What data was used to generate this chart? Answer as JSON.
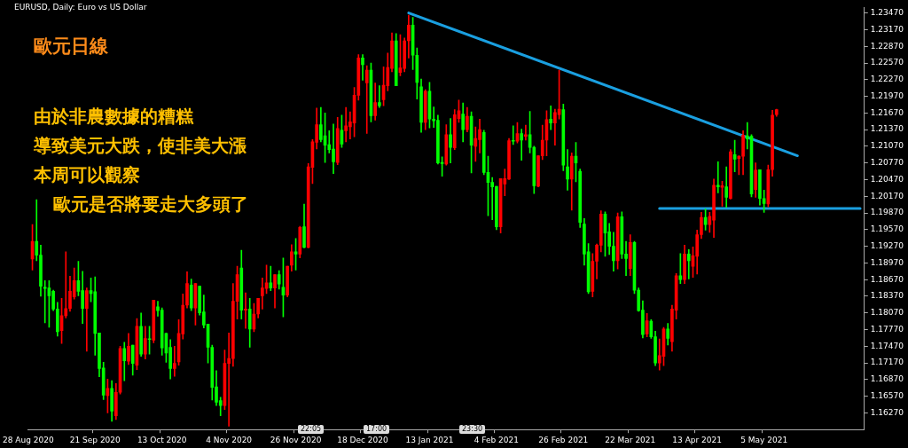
{
  "chart_data": {
    "type": "candlestick",
    "title": "EURUSD, Daily: Euro vs US Dollar",
    "annotations": [
      "歐元日線",
      "由於非農數據的糟糕",
      "導致美元大跌，使非美大漲",
      "本周可以觀察",
      "歐元是否將要走大多頭了",
      "22:05",
      "17:00",
      "23:30"
    ],
    "categories": [
      "28 Aug 2020",
      null,
      null,
      null,
      null,
      null,
      null,
      null,
      null,
      null,
      null,
      null,
      null,
      null,
      null,
      null,
      "21 Sep 2020",
      null,
      null,
      null,
      null,
      null,
      null,
      null,
      null,
      null,
      null,
      null,
      null,
      null,
      null,
      null,
      "13 Oct 2020",
      null,
      null,
      null,
      null,
      null,
      null,
      null,
      null,
      null,
      null,
      null,
      null,
      null,
      null,
      null,
      "4 Nov 2020",
      null,
      null,
      null,
      null,
      null,
      null,
      null,
      null,
      null,
      null,
      null,
      null,
      null,
      null,
      null,
      "26 Nov 2020",
      null,
      null,
      null,
      null,
      null,
      null,
      null,
      null,
      null,
      null,
      null,
      null,
      null,
      null,
      null,
      "18 Dec 2020",
      null,
      null,
      null,
      null,
      null,
      null,
      null,
      null,
      null,
      null,
      null,
      null,
      null,
      null,
      null,
      "13 Jan 2021",
      null,
      null,
      null,
      null,
      null,
      null,
      null,
      null,
      null,
      null,
      null,
      null,
      null,
      null,
      null,
      "4 Feb 2021",
      null,
      null,
      null,
      null,
      null,
      null,
      null,
      null,
      null,
      null,
      null,
      null,
      null,
      null,
      null,
      "26 Feb 2021",
      null,
      null,
      null,
      null,
      null,
      null,
      null,
      null,
      null,
      null,
      null,
      null,
      null,
      null,
      null,
      "22 Mar 2021",
      null,
      null,
      null,
      null,
      null,
      null,
      null,
      null,
      null,
      null,
      null,
      null,
      null,
      null,
      null,
      "13 Apr 2021",
      null,
      null,
      null,
      null,
      null,
      null,
      null,
      null,
      null,
      null,
      null,
      null,
      null,
      null,
      null,
      "5 May 2021",
      null,
      null,
      null,
      null,
      null,
      null,
      null,
      null,
      null,
      null,
      null,
      null,
      null,
      null,
      null,
      null,
      null,
      null,
      null,
      null,
      null,
      null,
      null,
      null
    ],
    "ohlc": [
      null,
      [
        1.1904,
        1.1966,
        1.1884,
        1.1936
      ],
      [
        1.1936,
        1.2011,
        1.1901,
        1.1911
      ],
      [
        1.1911,
        1.1929,
        1.1837,
        1.1855
      ],
      [
        1.1853,
        1.1865,
        1.1789,
        1.1851
      ],
      [
        1.1852,
        1.1865,
        1.1781,
        1.1838
      ],
      [
        1.1846,
        1.1848,
        1.1811,
        1.1814
      ],
      [
        1.1814,
        1.1826,
        1.1765,
        1.1773
      ],
      [
        1.1775,
        1.1833,
        1.1752,
        1.1802
      ],
      [
        1.1802,
        1.1917,
        1.1798,
        1.1815
      ],
      [
        1.1815,
        1.1873,
        1.181,
        1.1846
      ],
      [
        1.1836,
        1.1888,
        1.1832,
        1.1865
      ],
      [
        1.1865,
        1.19,
        1.1838,
        1.1846
      ],
      [
        1.1847,
        1.1882,
        1.1788,
        1.1815
      ],
      [
        1.1815,
        1.1852,
        1.1738,
        1.1847
      ],
      [
        1.1847,
        1.187,
        1.1827,
        1.1842
      ],
      [
        1.1845,
        1.1872,
        1.1731,
        1.177
      ],
      [
        1.1771,
        1.1771,
        1.1692,
        1.1707
      ],
      [
        1.1708,
        1.1718,
        1.1651,
        1.1659
      ],
      [
        1.1658,
        1.1688,
        1.1627,
        1.1671
      ],
      [
        1.1671,
        1.1685,
        1.1612,
        1.163
      ],
      [
        1.1622,
        1.168,
        1.1615,
        1.1664
      ],
      [
        1.1664,
        1.1747,
        1.1661,
        1.1743
      ],
      [
        1.1743,
        1.1754,
        1.1685,
        1.1721
      ],
      [
        1.172,
        1.177,
        1.1714,
        1.1747
      ],
      [
        1.1749,
        1.1749,
        1.1695,
        1.1716
      ],
      [
        1.1713,
        1.1797,
        1.1705,
        1.1783
      ],
      [
        1.1783,
        1.1807,
        1.1729,
        1.1733
      ],
      [
        1.1733,
        1.1783,
        1.1724,
        1.1761
      ],
      [
        1.176,
        1.1783,
        1.1733,
        1.1759
      ],
      [
        1.1758,
        1.183,
        1.1753,
        1.183
      ],
      [
        1.1818,
        1.1828,
        1.1801,
        1.1811
      ],
      [
        1.1812,
        1.1816,
        1.1731,
        1.1744
      ],
      [
        1.177,
        1.1771,
        1.1718,
        1.1735
      ],
      [
        1.1745,
        1.1759,
        1.1688,
        1.1707
      ],
      [
        1.1707,
        1.1747,
        1.1693,
        1.1716
      ],
      [
        1.1719,
        1.1795,
        1.1713,
        1.177
      ],
      [
        1.1769,
        1.1841,
        1.176,
        1.1821
      ],
      [
        1.1821,
        1.1881,
        1.1816,
        1.186
      ],
      [
        1.1857,
        1.1868,
        1.1811,
        1.1816
      ],
      [
        1.1816,
        1.186,
        1.1785,
        1.186
      ],
      [
        1.1855,
        1.1855,
        1.1803,
        1.1807
      ],
      [
        1.1809,
        1.1839,
        1.178,
        1.1785
      ],
      [
        1.1787,
        1.1787,
        1.1717,
        1.1745
      ],
      [
        1.1745,
        1.1749,
        1.165,
        1.1673
      ],
      [
        1.1674,
        1.1703,
        1.164,
        1.1646
      ],
      [
        1.1649,
        1.1655,
        1.1622,
        1.164
      ],
      [
        1.164,
        1.174,
        1.1633,
        1.1716
      ],
      [
        1.1716,
        1.1771,
        1.1603,
        1.1725
      ],
      [
        1.1725,
        1.186,
        1.1711,
        1.1828
      ],
      [
        1.1828,
        1.1891,
        1.1796,
        1.1876
      ],
      [
        1.1888,
        1.192,
        1.1796,
        1.1812
      ],
      [
        1.1812,
        1.1843,
        1.1779,
        1.1814
      ],
      [
        1.1814,
        1.1833,
        1.1745,
        1.1778
      ],
      [
        1.1778,
        1.1824,
        1.1773,
        1.1805
      ],
      [
        1.1805,
        1.1833,
        1.1798,
        1.1833
      ],
      [
        1.1838,
        1.187,
        1.1814,
        1.1852
      ],
      [
        1.1851,
        1.1893,
        1.1842,
        1.1861
      ],
      [
        1.1861,
        1.1891,
        1.1847,
        1.1852
      ],
      [
        1.1852,
        1.1876,
        1.1816,
        1.1876
      ],
      [
        1.1876,
        1.1883,
        1.185,
        1.1859
      ],
      [
        1.1853,
        1.1906,
        1.18,
        1.1839
      ],
      [
        1.1839,
        1.1891,
        1.1836,
        1.1891
      ],
      [
        1.1893,
        1.193,
        1.1882,
        1.1917
      ],
      [
        1.1917,
        1.1941,
        1.1884,
        1.1913
      ],
      [
        1.1913,
        1.1963,
        1.1906,
        1.1961
      ],
      [
        1.1962,
        1.2003,
        1.1924,
        1.1925
      ],
      [
        1.1925,
        1.2076,
        1.1924,
        1.207
      ],
      [
        1.2069,
        1.2119,
        1.204,
        1.2115
      ],
      [
        1.2114,
        1.2176,
        1.2102,
        1.2146
      ],
      [
        1.2146,
        1.2177,
        1.2115,
        1.2119
      ],
      [
        1.2126,
        1.2167,
        1.2078,
        1.2109
      ],
      [
        1.211,
        1.2135,
        1.2095,
        1.2101
      ],
      [
        1.2102,
        1.2147,
        1.2058,
        1.2079
      ],
      [
        1.2078,
        1.2159,
        1.2074,
        1.2139
      ],
      [
        1.2136,
        1.2163,
        1.2105,
        1.2111
      ],
      [
        1.2135,
        1.2177,
        1.2115,
        1.2144
      ],
      [
        1.2142,
        1.2169,
        1.212,
        1.2151
      ],
      [
        1.2149,
        1.2213,
        1.2124,
        1.2199
      ],
      [
        1.2199,
        1.2272,
        1.219,
        1.2266
      ],
      [
        1.2266,
        1.2272,
        1.2226,
        1.2254
      ],
      [
        1.2221,
        1.2252,
        1.213,
        1.2244
      ],
      [
        1.2244,
        1.2257,
        1.2151,
        1.2162
      ],
      [
        1.2162,
        1.2221,
        1.2154,
        1.2186
      ],
      [
        1.2186,
        1.2216,
        1.2177,
        1.218
      ],
      [
        1.2191,
        1.225,
        1.218,
        1.2217
      ],
      [
        1.2216,
        1.2275,
        1.2207,
        1.2249
      ],
      [
        1.2247,
        1.2311,
        1.2241,
        1.2297
      ],
      [
        1.2297,
        1.231,
        1.2216,
        1.2216
      ],
      [
        1.224,
        1.2308,
        1.2234,
        1.2248
      ],
      [
        1.2247,
        1.2302,
        1.2241,
        1.2297
      ],
      [
        1.2297,
        1.2343,
        1.2266,
        1.2325
      ],
      [
        1.2325,
        1.2339,
        1.2245,
        1.2271
      ],
      [
        1.2271,
        1.2284,
        1.2192,
        1.2222
      ],
      [
        1.2214,
        1.2228,
        1.2132,
        1.215
      ],
      [
        1.215,
        1.2209,
        1.2137,
        1.2206
      ],
      [
        1.2206,
        1.2222,
        1.214,
        1.2156
      ],
      [
        1.2156,
        1.2178,
        1.2141,
        1.2153
      ],
      [
        1.2154,
        1.2163,
        1.2075,
        1.2077
      ],
      [
        1.2078,
        1.2088,
        1.2053,
        1.2076
      ],
      [
        1.2075,
        1.2146,
        1.2073,
        1.2128
      ],
      [
        1.2128,
        1.2157,
        1.2077,
        1.2105
      ],
      [
        1.2104,
        1.2173,
        1.2101,
        1.2164
      ],
      [
        1.2157,
        1.219,
        1.215,
        1.2171
      ],
      [
        1.2165,
        1.2185,
        1.2115,
        1.2137
      ],
      [
        1.2137,
        1.2177,
        1.2133,
        1.2161
      ],
      [
        1.2161,
        1.2169,
        1.2059,
        1.2109
      ],
      [
        1.2107,
        1.2142,
        1.208,
        1.2121
      ],
      [
        1.2119,
        1.2156,
        1.2095,
        1.2137
      ],
      [
        1.2132,
        1.2136,
        1.2056,
        1.206
      ],
      [
        1.206,
        1.2089,
        1.1982,
        1.2042
      ],
      [
        1.2042,
        1.2051,
        1.1975,
        1.2034
      ],
      [
        1.2035,
        1.2035,
        1.1957,
        1.1962
      ],
      [
        1.1962,
        1.2049,
        1.1951,
        1.2049
      ],
      [
        1.2039,
        1.2066,
        1.2018,
        1.2049
      ],
      [
        1.2048,
        1.2121,
        1.2047,
        1.2117
      ],
      [
        1.2117,
        1.2144,
        1.211,
        1.2116
      ],
      [
        1.2116,
        1.215,
        1.2113,
        1.213
      ],
      [
        1.213,
        1.2138,
        1.2082,
        1.2118
      ],
      [
        1.2125,
        1.2145,
        1.2118,
        1.2128
      ],
      [
        1.2128,
        1.217,
        1.2095,
        1.2105
      ],
      [
        1.2105,
        1.2107,
        1.2022,
        1.2036
      ],
      [
        1.2035,
        1.209,
        1.2034,
        1.209
      ],
      [
        1.209,
        1.2145,
        1.2083,
        1.2118
      ],
      [
        1.2118,
        1.2171,
        1.209,
        1.2155
      ],
      [
        1.2156,
        1.218,
        1.2137,
        1.2149
      ],
      [
        1.2149,
        1.2174,
        1.2109,
        1.2168
      ],
      [
        1.2164,
        1.2244,
        1.2156,
        1.2174
      ],
      [
        1.2173,
        1.2183,
        1.2063,
        1.2073
      ],
      [
        1.207,
        1.2101,
        1.2028,
        1.2048
      ],
      [
        1.2048,
        1.2095,
        1.1992,
        1.2089
      ],
      [
        1.2089,
        1.2114,
        1.2043,
        1.2077
      ],
      [
        1.2062,
        1.2066,
        1.1961,
        1.197
      ],
      [
        1.1967,
        1.1977,
        1.1893,
        1.1913
      ],
      [
        1.1917,
        1.1932,
        1.1842,
        1.1845
      ],
      [
        1.1846,
        1.1914,
        1.1836,
        1.19
      ],
      [
        1.19,
        1.1931,
        1.1868,
        1.1929
      ],
      [
        1.1929,
        1.1991,
        1.1917,
        1.1985
      ],
      [
        1.1985,
        1.1989,
        1.1909,
        1.1951
      ],
      [
        1.1953,
        1.1968,
        1.1912,
        1.1927
      ],
      [
        1.1927,
        1.1952,
        1.1882,
        1.1901
      ],
      [
        1.1901,
        1.1987,
        1.1886,
        1.198
      ],
      [
        1.198,
        1.1989,
        1.1905,
        1.1913
      ],
      [
        1.1913,
        1.1936,
        1.1874,
        1.1905
      ],
      [
        1.1887,
        1.1948,
        1.1874,
        1.1934
      ],
      [
        1.1934,
        1.1936,
        1.1842,
        1.1848
      ],
      [
        1.1848,
        1.1852,
        1.181,
        1.1811
      ],
      [
        1.1812,
        1.1829,
        1.1762,
        1.1768
      ],
      [
        1.1769,
        1.1806,
        1.1764,
        1.1793
      ],
      [
        1.1792,
        1.1795,
        1.1761,
        1.1764
      ],
      [
        1.1764,
        1.1774,
        1.1712,
        1.1717
      ],
      [
        1.1717,
        1.176,
        1.1704,
        1.173
      ],
      [
        1.1729,
        1.1781,
        1.1712,
        1.1778
      ],
      [
        1.1778,
        1.1788,
        1.1749,
        1.1761
      ],
      [
        1.1755,
        1.1821,
        1.1738,
        1.1814
      ],
      [
        1.1812,
        1.1878,
        1.1796,
        1.1874
      ],
      [
        1.1874,
        1.1914,
        1.186,
        1.1867
      ],
      [
        1.1867,
        1.1929,
        1.186,
        1.1913
      ],
      [
        1.1913,
        1.1921,
        1.1868,
        1.1901
      ],
      [
        1.1891,
        1.1926,
        1.1871,
        1.191
      ],
      [
        1.1909,
        1.1956,
        1.1877,
        1.1948
      ],
      [
        1.1948,
        1.1988,
        1.1941,
        1.1979
      ],
      [
        1.1979,
        1.1994,
        1.1956,
        1.1966
      ],
      [
        1.1966,
        1.1988,
        1.1952,
        1.1981
      ],
      [
        1.1974,
        1.2048,
        1.1943,
        1.2037
      ],
      [
        1.2037,
        1.2079,
        1.2023,
        1.2034
      ],
      [
        1.2033,
        1.2044,
        1.1999,
        1.2036
      ],
      [
        1.2034,
        1.207,
        1.1997,
        1.2015
      ],
      [
        1.2013,
        1.2101,
        1.2012,
        1.2097
      ],
      [
        1.2092,
        1.2118,
        1.2061,
        1.2084
      ],
      [
        1.2085,
        1.209,
        1.2056,
        1.2089
      ],
      [
        1.2089,
        1.2135,
        1.2056,
        1.2127
      ],
      [
        1.2126,
        1.215,
        1.2102,
        1.212
      ],
      [
        1.2125,
        1.2128,
        1.2016,
        1.2021
      ],
      [
        1.2029,
        1.2077,
        1.2015,
        1.2064
      ],
      [
        1.2065,
        1.2065,
        1.2001,
        1.2013
      ],
      [
        1.2013,
        1.2028,
        1.1988,
        1.2004
      ],
      [
        1.2003,
        1.2073,
        1.1998,
        1.2065
      ],
      [
        1.2065,
        1.2172,
        1.2053,
        1.2163
      ],
      [
        1.2164,
        1.2174,
        1.2161,
        1.2173
      ],
      null,
      null,
      null,
      null,
      null,
      null,
      null,
      null,
      null,
      null,
      null,
      null,
      null,
      null,
      null,
      null,
      null,
      null,
      null,
      null,
      null
    ],
    "colors": [
      null,
      "#ff0000",
      "#00ff00",
      "#00ff00",
      "#00ff00",
      "#00ff00",
      "#00ff00",
      "#00ff00",
      "#ff0000",
      "#ff0000",
      "#ff0000",
      "#ff0000",
      "#00ff00",
      "#00ff00",
      "#ff0000",
      "#00ff00",
      "#00ff00",
      "#00ff00",
      "#00ff00",
      "#ff0000",
      "#00ff00",
      "#ff0000",
      "#ff0000",
      "#00ff00",
      "#ff0000",
      "#00ff00",
      "#ff0000",
      "#00ff00",
      "#ff0000",
      "#00ff00",
      "#ff0000",
      "#00ff00",
      "#00ff00",
      "#00ff00",
      "#00ff00",
      "#ff0000",
      "#ff0000",
      "#ff0000",
      "#ff0000",
      "#00ff00",
      "#ff0000",
      "#00ff00",
      "#00ff00",
      "#00ff00",
      "#00ff00",
      "#00ff00",
      "#00ff00",
      "#ff0000",
      "#ff0000",
      "#ff0000",
      "#ff0000",
      "#00ff00",
      "#ff0000",
      "#00ff00",
      "#ff0000",
      "#ff0000",
      "#ff0000",
      "#ff0000",
      "#00ff00",
      "#ff0000",
      "#00ff00",
      "#00ff00",
      "#ff0000",
      "#ff0000",
      "#00ff00",
      "#ff0000",
      "#00ff00",
      "#ff0000",
      "#ff0000",
      "#ff0000",
      "#00ff00",
      "#00ff00",
      "#00ff00",
      "#00ff00",
      "#ff0000",
      "#00ff00",
      "#ff0000",
      "#ff0000",
      "#ff0000",
      "#ff0000",
      "#00ff00",
      "#ff0000",
      "#00ff00",
      "#ff0000",
      "#00ff00",
      "#ff0000",
      "#ff0000",
      "#ff0000",
      "#00ff00",
      "#ff0000",
      "#ff0000",
      "#ff0000",
      "#00ff00",
      "#00ff00",
      "#00ff00",
      "#ff0000",
      "#00ff00",
      "#00ff00",
      "#00ff00",
      "#00ff00",
      "#ff0000",
      "#00ff00",
      "#ff0000",
      "#ff0000",
      "#00ff00",
      "#ff0000",
      "#00ff00",
      "#ff0000",
      "#ff0000",
      "#00ff00",
      "#00ff00",
      "#00ff00",
      "#00ff00",
      "#ff0000",
      "#ff0000",
      "#ff0000",
      "#00ff00",
      "#ff0000",
      "#00ff00",
      "#ff0000",
      "#00ff00",
      "#00ff00",
      "#ff0000",
      "#ff0000",
      "#ff0000",
      "#00ff00",
      "#ff0000",
      "#ff0000",
      "#00ff00",
      "#00ff00",
      "#ff0000",
      "#00ff00",
      "#00ff00",
      "#00ff00",
      "#00ff00",
      "#ff0000",
      "#ff0000",
      "#ff0000",
      "#00ff00",
      "#00ff00",
      "#00ff00",
      "#ff0000",
      "#00ff00",
      "#00ff00",
      "#ff0000",
      "#00ff00",
      "#00ff00",
      "#00ff00",
      "#ff0000",
      "#00ff00",
      "#00ff00",
      "#ff0000",
      "#ff0000",
      "#00ff00",
      "#ff0000",
      "#ff0000",
      "#00ff00",
      "#ff0000",
      "#00ff00",
      "#ff0000",
      "#ff0000",
      "#ff0000",
      "#00ff00",
      "#ff0000",
      "#ff0000",
      "#00ff00",
      "#ff0000",
      "#00ff00",
      "#ff0000",
      "#00ff00",
      "#ff0000",
      "#ff0000",
      "#00ff00",
      "#00ff00",
      "#ff0000",
      "#00ff00",
      "#00ff00",
      "#ff0000",
      "#ff0000",
      "#ff0000",
      null,
      null,
      null,
      null,
      null,
      null,
      null,
      null,
      null,
      null,
      null,
      null,
      null,
      null,
      null,
      null,
      null,
      null,
      null,
      null,
      null
    ],
    "series": [
      {
        "type": "line",
        "color": "#1a9fe0",
        "values": [
          null,
          null,
          null,
          null,
          null,
          null,
          null,
          null,
          null,
          null,
          null,
          null,
          null,
          null,
          null,
          null,
          null,
          null,
          null,
          null,
          null,
          null,
          null,
          null,
          null,
          null,
          null,
          null,
          null,
          null,
          null,
          null,
          null,
          null,
          null,
          null,
          null,
          null,
          null,
          null,
          null,
          null,
          null,
          null,
          null,
          null,
          null,
          null,
          null,
          null,
          null,
          null,
          null,
          null,
          null,
          null,
          null,
          null,
          null,
          null,
          null,
          null,
          null,
          null,
          null,
          null,
          null,
          null,
          null,
          null,
          null,
          null,
          null,
          null,
          null,
          null,
          null,
          null,
          null,
          null,
          null,
          null,
          null,
          null,
          null,
          null,
          null,
          null,
          null,
          null,
          null,
          1.2347,
          null,
          null,
          null,
          null,
          null,
          null,
          null,
          null,
          null,
          null,
          null,
          null,
          null,
          null,
          null,
          null,
          null,
          null,
          null,
          null,
          null,
          null,
          null,
          null,
          null,
          null,
          null,
          null,
          null,
          null,
          null,
          null,
          null,
          null,
          null,
          null,
          null,
          null,
          null,
          null,
          null,
          null,
          null,
          null,
          null,
          null,
          null,
          null,
          null,
          null,
          null,
          null,
          null,
          null,
          null,
          null,
          null,
          null,
          null,
          null,
          null,
          null,
          null,
          null,
          null,
          null,
          null,
          null,
          null,
          null,
          null,
          null,
          null,
          null,
          null,
          null,
          null,
          null,
          null,
          null,
          null,
          null,
          null,
          null,
          null,
          null,
          null,
          null,
          null,
          null,
          null,
          null,
          1.209,
          null,
          null,
          null,
          null,
          null,
          null,
          null,
          null,
          null,
          null,
          null,
          null,
          null,
          null,
          null,
          null
        ]
      },
      {
        "type": "line",
        "color": "#1a9fe0",
        "values": [
          null,
          null,
          null,
          null,
          null,
          null,
          null,
          null,
          null,
          null,
          null,
          null,
          null,
          null,
          null,
          null,
          null,
          null,
          null,
          null,
          null,
          null,
          null,
          null,
          null,
          null,
          null,
          null,
          null,
          null,
          null,
          null,
          null,
          null,
          null,
          null,
          null,
          null,
          null,
          null,
          null,
          null,
          null,
          null,
          null,
          null,
          null,
          null,
          null,
          null,
          null,
          null,
          null,
          null,
          null,
          null,
          null,
          null,
          null,
          null,
          null,
          null,
          null,
          null,
          null,
          null,
          null,
          null,
          null,
          null,
          null,
          null,
          null,
          null,
          null,
          null,
          null,
          null,
          null,
          null,
          null,
          null,
          null,
          null,
          null,
          null,
          null,
          null,
          null,
          null,
          null,
          null,
          null,
          null,
          null,
          null,
          null,
          null,
          null,
          null,
          null,
          null,
          null,
          null,
          null,
          null,
          null,
          null,
          null,
          null,
          null,
          null,
          null,
          null,
          null,
          null,
          null,
          null,
          null,
          null,
          null,
          null,
          null,
          null,
          null,
          null,
          null,
          null,
          null,
          null,
          null,
          null,
          null,
          null,
          null,
          null,
          null,
          null,
          null,
          null,
          null,
          null,
          null,
          null,
          null,
          null,
          null,
          null,
          null,
          null,
          null,
          1.1995,
          null,
          null,
          null,
          null,
          null,
          null,
          null,
          null,
          null,
          null,
          null,
          null,
          null,
          null,
          null,
          null,
          null,
          null,
          null,
          null,
          null,
          null,
          null,
          null,
          null,
          null,
          null,
          null,
          null,
          null,
          null,
          null,
          null,
          null,
          null,
          null,
          null,
          null,
          null,
          null,
          null,
          null,
          null,
          null,
          null,
          null,
          null,
          1.1995,
          null
        ]
      }
    ],
    "ylim": [
      1.1597,
      1.2357
    ],
    "yticks": [
      {
        "value": 1.1627,
        "label": "1.16270"
      },
      {
        "value": 1.1657,
        "label": "1.16570"
      },
      {
        "value": 1.1687,
        "label": "1.16870"
      },
      {
        "value": 1.1717,
        "label": "1.17170"
      },
      {
        "value": 1.1747,
        "label": "1.17470"
      },
      {
        "value": 1.1777,
        "label": "1.17770"
      },
      {
        "value": 1.1807,
        "label": "1.18070"
      },
      {
        "value": 1.1837,
        "label": "1.18370"
      },
      {
        "value": 1.1867,
        "label": "1.18670"
      },
      {
        "value": 1.1897,
        "label": "1.18970"
      },
      {
        "value": 1.1927,
        "label": "1.19270"
      },
      {
        "value": 1.1957,
        "label": "1.19570"
      },
      {
        "value": 1.1987,
        "label": "1.19870"
      },
      {
        "value": 1.2017,
        "label": "1.20170"
      },
      {
        "value": 1.2047,
        "label": "1.20470"
      },
      {
        "value": 1.2077,
        "label": "1.20770"
      },
      {
        "value": 1.2107,
        "label": "1.21070"
      },
      {
        "value": 1.2137,
        "label": "1.21370"
      },
      {
        "value": 1.2167,
        "label": "1.21670"
      },
      {
        "value": 1.2197,
        "label": "1.21970"
      },
      {
        "value": 1.2227,
        "label": "1.22270"
      },
      {
        "value": 1.2257,
        "label": "1.22570"
      },
      {
        "value": 1.2287,
        "label": "1.22870"
      },
      {
        "value": 1.2317,
        "label": "1.23170"
      },
      {
        "value": 1.2347,
        "label": "1.23470"
      }
    ]
  }
}
